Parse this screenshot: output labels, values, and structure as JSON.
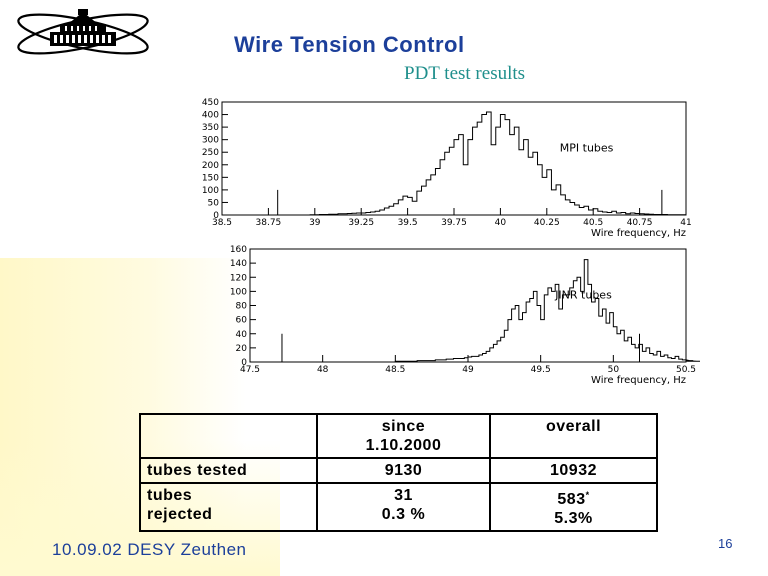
{
  "slide": {
    "title": "Wire Tension Control",
    "subtitle": "PDT test results",
    "footer": "10.09.02 DESY Zeuthen",
    "page_number": "16",
    "logo_icon": "institute-building-atom-logo-icon",
    "colors": {
      "title": "#1c3f9a",
      "subtitle": "#1f8f8c",
      "background_tint": "#fff8c8"
    }
  },
  "chart_data": [
    {
      "type": "bar",
      "histogram": true,
      "annotation": "MPI tubes",
      "xlabel": "Wire frequency, Hz",
      "ylabel": "",
      "xlim": [
        38.5,
        41
      ],
      "ylim": [
        0,
        450
      ],
      "x_ticks": [
        "38.5",
        "38.75",
        "39",
        "39.25",
        "39.5",
        "39.75",
        "40",
        "40.25",
        "40.5",
        "40.75",
        "41"
      ],
      "y_ticks": [
        "0",
        "50",
        "100",
        "150",
        "200",
        "250",
        "300",
        "350",
        "400",
        "450"
      ],
      "bin_start": 38.5,
      "bin_width": 0.025,
      "values": [
        0,
        0,
        0,
        0,
        0,
        0,
        0,
        0,
        0,
        0,
        0,
        0,
        0,
        0,
        0,
        0,
        0,
        0,
        0,
        1,
        1,
        2,
        2,
        3,
        3,
        5,
        5,
        6,
        7,
        8,
        8,
        10,
        12,
        15,
        20,
        28,
        35,
        45,
        60,
        75,
        70,
        55,
        95,
        115,
        140,
        160,
        185,
        220,
        250,
        270,
        300,
        320,
        200,
        300,
        350,
        370,
        400,
        410,
        280,
        350,
        400,
        380,
        320,
        350,
        260,
        300,
        230,
        250,
        200,
        150,
        180,
        100,
        120,
        80,
        60,
        50,
        40,
        30,
        35,
        20,
        25,
        15,
        12,
        10,
        15,
        8,
        10,
        5,
        8,
        6,
        5,
        4,
        3,
        2,
        2,
        2,
        1,
        1,
        1,
        1
      ],
      "markers": [
        {
          "x": 38.8,
          "height": 100
        },
        {
          "x": 40.87,
          "height": 100
        }
      ]
    },
    {
      "type": "bar",
      "histogram": true,
      "annotation": "JINR tubes",
      "xlabel": "Wire frequency, Hz",
      "ylabel": "",
      "xlim": [
        47.5,
        50.5
      ],
      "ylim": [
        0,
        160
      ],
      "x_ticks": [
        "47.5",
        "48",
        "48.5",
        "49",
        "49.5",
        "50",
        "50.5"
      ],
      "y_ticks": [
        "0",
        "20",
        "40",
        "60",
        "80",
        "100",
        "120",
        "140",
        "160"
      ],
      "bin_start": 47.5,
      "bin_width": 0.025,
      "values": [
        0,
        0,
        0,
        0,
        0,
        0,
        0,
        0,
        0,
        0,
        0,
        0,
        0,
        0,
        0,
        0,
        0,
        0,
        0,
        0,
        0,
        0,
        0,
        0,
        0,
        0,
        0,
        0,
        0,
        0,
        0,
        0,
        0,
        0,
        0,
        0,
        0,
        0,
        0,
        0,
        1,
        1,
        1,
        1,
        1,
        1,
        2,
        2,
        2,
        2,
        2,
        3,
        3,
        3,
        4,
        4,
        5,
        5,
        5,
        6,
        7,
        8,
        8,
        10,
        12,
        15,
        20,
        25,
        30,
        35,
        45,
        60,
        75,
        80,
        60,
        70,
        85,
        90,
        100,
        80,
        60,
        95,
        105,
        100,
        110,
        75,
        95,
        95,
        105,
        115,
        120,
        100,
        145,
        110,
        85,
        90,
        65,
        75,
        55,
        70,
        50,
        40,
        45,
        30,
        35,
        25,
        20,
        25,
        15,
        20,
        12,
        10,
        15,
        8,
        10,
        6,
        5,
        8,
        4,
        3,
        3,
        2,
        2,
        1,
        1,
        1,
        1,
        1
      ],
      "markers": [
        {
          "x": 47.72,
          "height": 40
        },
        {
          "x": 50.18,
          "height": 40
        }
      ]
    }
  ],
  "table": {
    "header": [
      "",
      "since 1.10.2000",
      "overall"
    ],
    "header_since_line1": "since",
    "header_since_line2": "1.10.2000",
    "row1_label": "tubes tested",
    "row1_since": "9130",
    "row1_overall": "10932",
    "row2_label_line1": "tubes",
    "row2_label_line2": "rejected",
    "row2_since_line1": "31",
    "row2_since_line2": "0.3 %",
    "row2_overall_line1": "583",
    "row2_overall_mark": "*",
    "row2_overall_line2": "5.3%"
  }
}
